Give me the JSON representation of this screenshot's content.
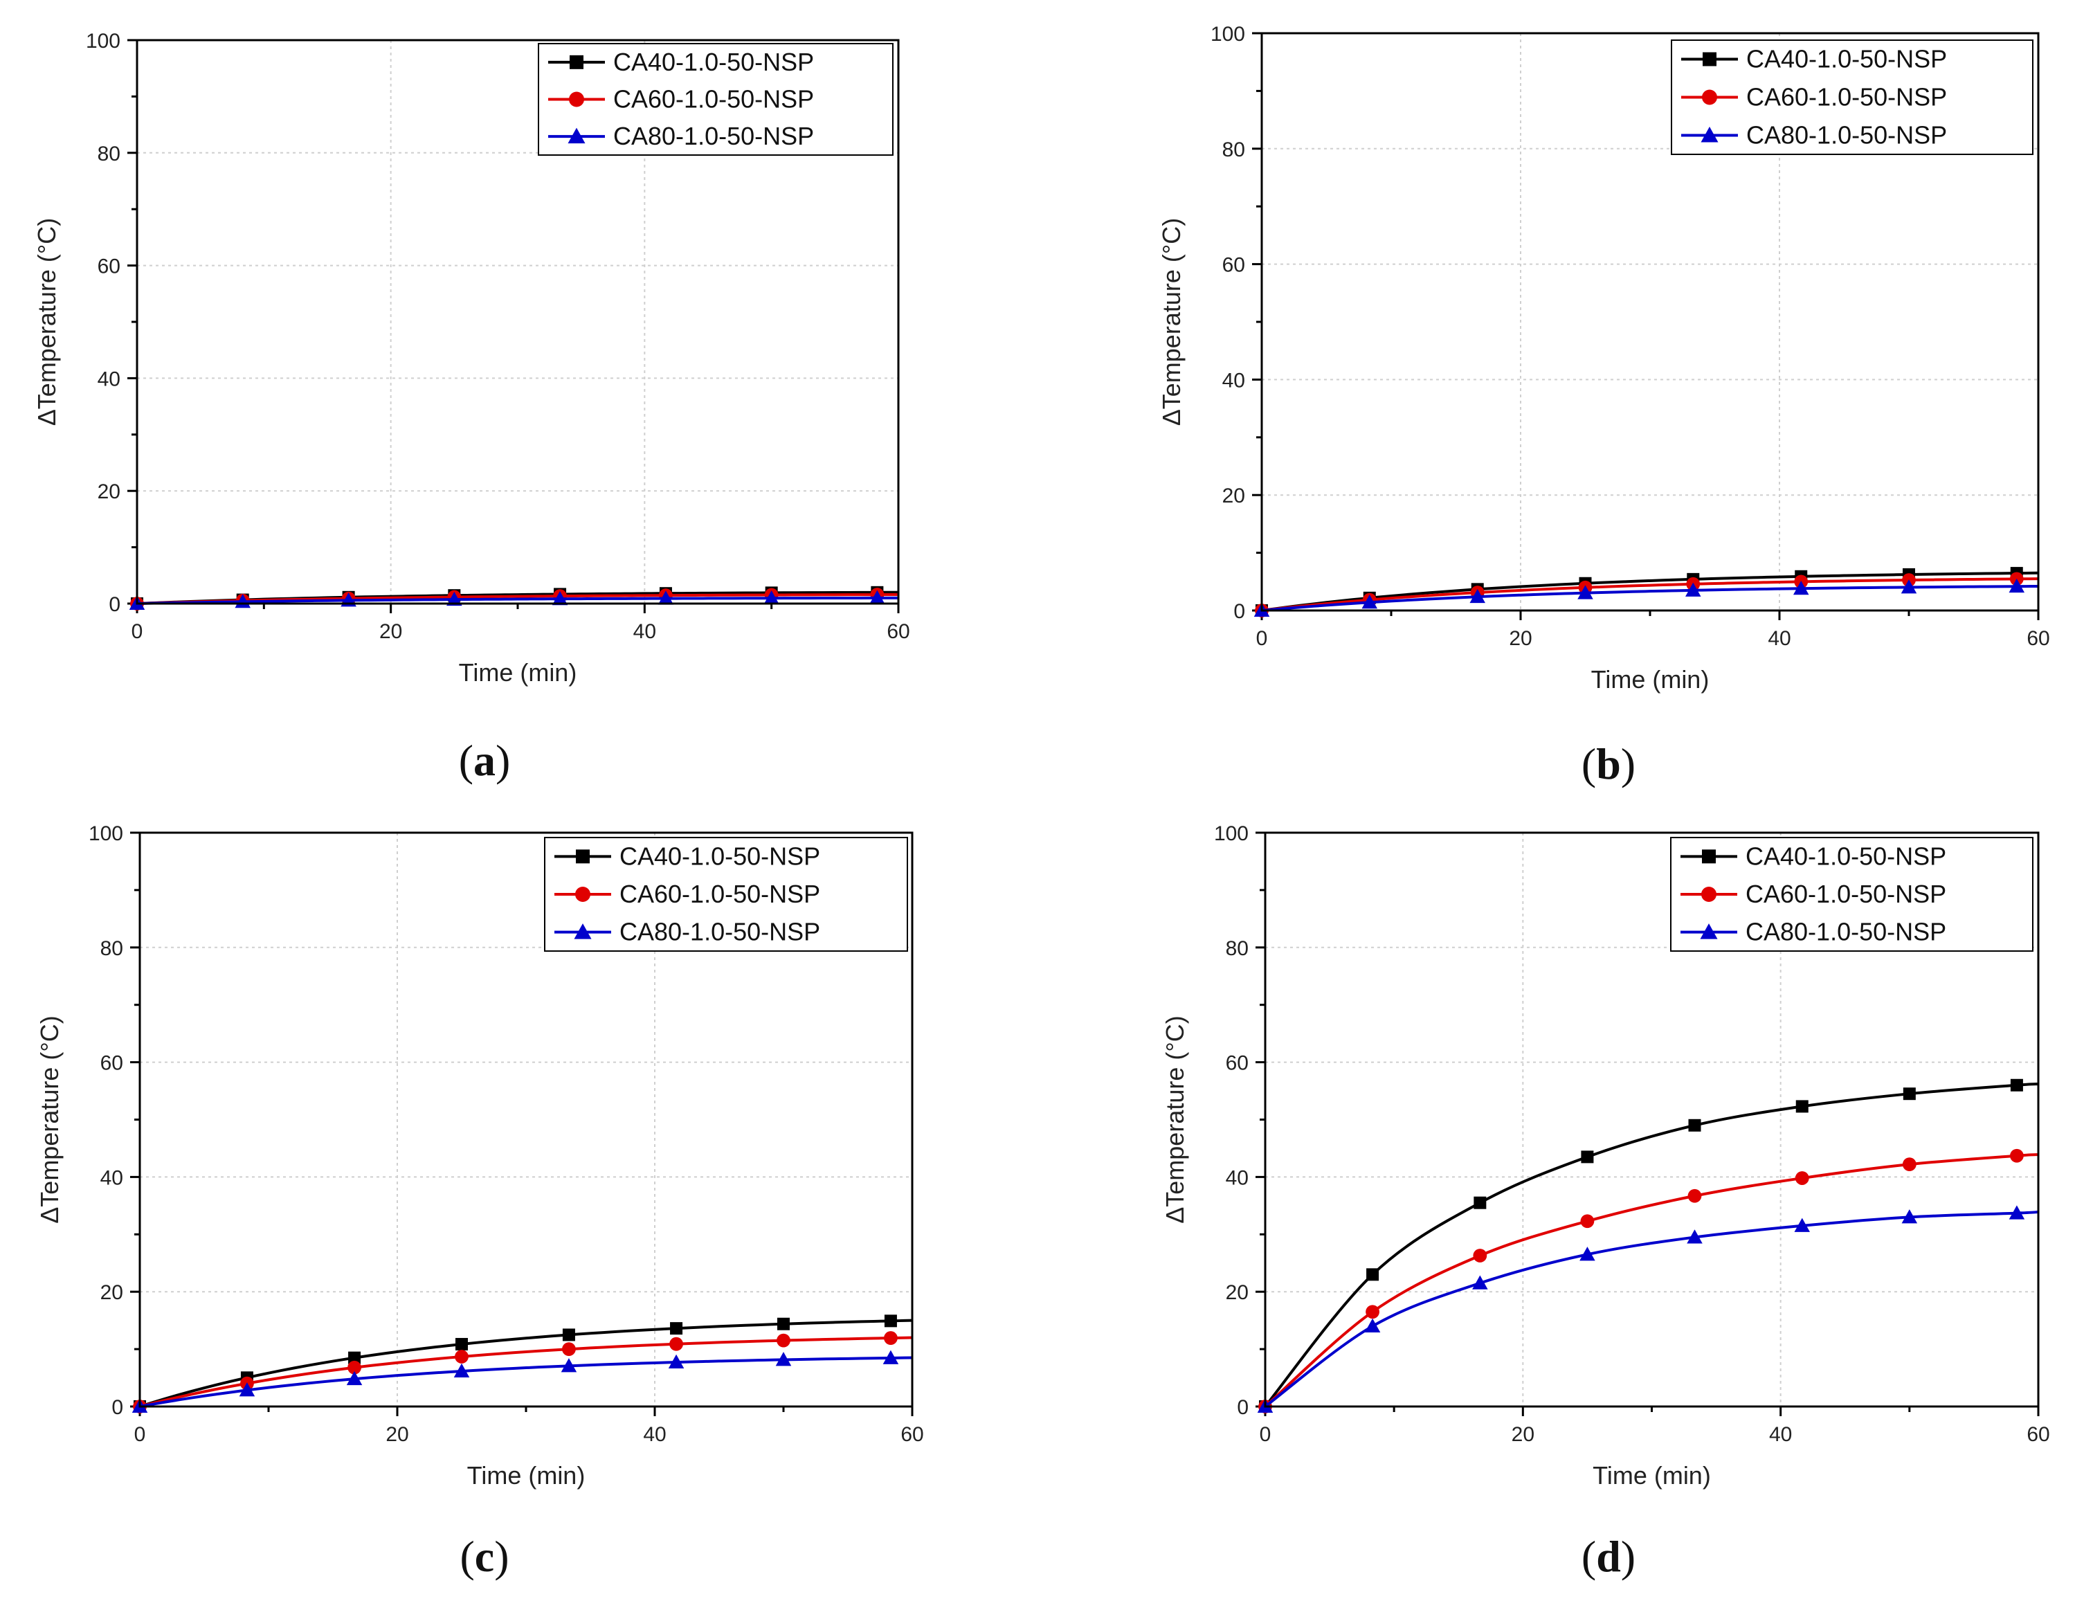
{
  "figure": {
    "charts": [
      "a",
      "b",
      "c",
      "d"
    ]
  },
  "chart_data": [
    {
      "id": "a",
      "type": "line",
      "caption": "(a)",
      "caption_letter": "a",
      "xlabel": "Time (min)",
      "ylabel": "ΔTemperature (°C)",
      "xlim": [
        0,
        60
      ],
      "ylim": [
        0,
        100
      ],
      "xticks": [
        0,
        20,
        40,
        60
      ],
      "yticks": [
        0,
        20,
        40,
        60,
        80,
        100
      ],
      "grid": true,
      "legend": "top-right",
      "marker_x": [
        0,
        8.33,
        16.67,
        25,
        33.33,
        41.67,
        50,
        58.33
      ],
      "series": [
        {
          "name": "CA40-1.0-50-NSP",
          "color": "#000000",
          "marker": "square",
          "final": 2.0
        },
        {
          "name": "CA60-1.0-50-NSP",
          "color": "#e00000",
          "marker": "circle",
          "final": 1.6
        },
        {
          "name": "CA80-1.0-50-NSP",
          "color": "#0000cc",
          "marker": "triangle",
          "final": 1.0
        }
      ]
    },
    {
      "id": "b",
      "type": "line",
      "caption": "(b)",
      "caption_letter": "b",
      "xlabel": "Time (min)",
      "ylabel": "ΔTemperature (°C)",
      "xlim": [
        0,
        60
      ],
      "ylim": [
        0,
        100
      ],
      "xticks": [
        0,
        20,
        40,
        60
      ],
      "yticks": [
        0,
        20,
        40,
        60,
        80,
        100
      ],
      "grid": true,
      "legend": "top-right",
      "marker_x": [
        0,
        8.33,
        16.67,
        25,
        33.33,
        41.67,
        50,
        58.33
      ],
      "series": [
        {
          "name": "CA40-1.0-50-NSP",
          "color": "#000000",
          "marker": "square",
          "final": 6.5
        },
        {
          "name": "CA60-1.0-50-NSP",
          "color": "#e00000",
          "marker": "circle",
          "final": 5.5
        },
        {
          "name": "CA80-1.0-50-NSP",
          "color": "#0000cc",
          "marker": "triangle",
          "final": 4.2
        }
      ]
    },
    {
      "id": "c",
      "type": "line",
      "caption": "(c)",
      "caption_letter": "c",
      "xlabel": "Time (min)",
      "ylabel": "ΔTemperature (°C)",
      "xlim": [
        0,
        60
      ],
      "ylim": [
        0,
        100
      ],
      "xticks": [
        0,
        20,
        40,
        60
      ],
      "yticks": [
        0,
        20,
        40,
        60,
        80,
        100
      ],
      "grid": true,
      "legend": "top-right",
      "marker_x": [
        0,
        8.33,
        16.67,
        25,
        33.33,
        41.67,
        50,
        58.33
      ],
      "series": [
        {
          "name": "CA40-1.0-50-NSP",
          "color": "#000000",
          "marker": "square",
          "final": 15.0
        },
        {
          "name": "CA60-1.0-50-NSP",
          "color": "#e00000",
          "marker": "circle",
          "final": 12.0
        },
        {
          "name": "CA80-1.0-50-NSP",
          "color": "#0000cc",
          "marker": "triangle",
          "final": 8.5
        }
      ]
    },
    {
      "id": "d",
      "type": "line",
      "caption": "(d)",
      "caption_letter": "d",
      "xlabel": "Time (min)",
      "ylabel": "ΔTemperature (°C)",
      "xlim": [
        0,
        60
      ],
      "ylim": [
        0,
        100
      ],
      "xticks": [
        0,
        20,
        40,
        60
      ],
      "yticks": [
        0,
        20,
        40,
        60,
        80,
        100
      ],
      "grid": true,
      "legend": "top-right",
      "marker_x": [
        0,
        8.33,
        16.67,
        25,
        33.33,
        41.67,
        50,
        58.33
      ],
      "series": [
        {
          "name": "CA40-1.0-50-NSP",
          "color": "#000000",
          "marker": "square",
          "values": [
            0,
            23,
            35.5,
            43.5,
            49,
            52.3,
            54.5,
            56
          ]
        },
        {
          "name": "CA60-1.0-50-NSP",
          "color": "#e00000",
          "marker": "circle",
          "values": [
            0,
            16.5,
            26.3,
            32.3,
            36.7,
            39.8,
            42.2,
            43.7
          ]
        },
        {
          "name": "CA80-1.0-50-NSP",
          "color": "#0000cc",
          "marker": "triangle",
          "values": [
            0,
            14,
            21.5,
            26.5,
            29.5,
            31.5,
            33,
            33.7
          ]
        }
      ]
    }
  ]
}
